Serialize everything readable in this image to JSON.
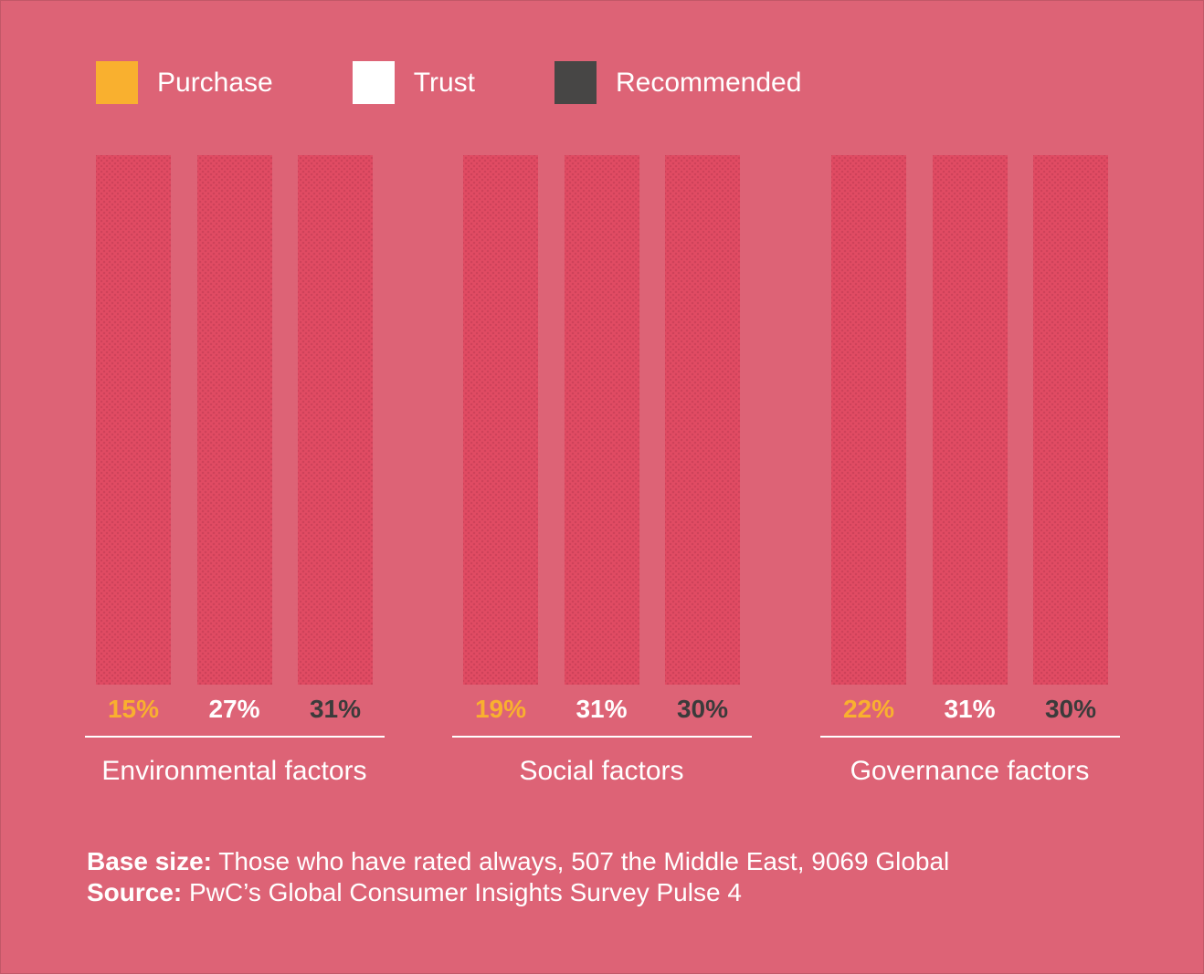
{
  "colors": {
    "background": "#dd6376",
    "bar_fill": "#e14b63",
    "purchase": "#f9b02f",
    "trust": "#ffffff",
    "recommended": "#474645",
    "text": "#ffffff",
    "dark_text": "#3b3b3b"
  },
  "chart_data": {
    "type": "bar",
    "title": "",
    "xlabel": "",
    "ylabel": "",
    "categories": [
      "Environmental factors",
      "Social factors",
      "Governance factors"
    ],
    "series": [
      {
        "name": "Purchase",
        "color": "#f9b02f",
        "values": [
          15,
          19,
          22
        ]
      },
      {
        "name": "Trust",
        "color": "#ffffff",
        "values": [
          27,
          31,
          31
        ]
      },
      {
        "name": "Recommended",
        "color": "#474645",
        "values": [
          31,
          30,
          30
        ]
      }
    ],
    "value_labels": [
      [
        "15%",
        "27%",
        "31%"
      ],
      [
        "19%",
        "31%",
        "30%"
      ],
      [
        "22%",
        "31%",
        "30%"
      ]
    ],
    "legend_position": "top-left",
    "grid": false,
    "layout_note": "All nine bars are drawn at identical full height; percentages appear only as colored labels beneath each bar"
  },
  "footer": {
    "base_size_label": "Base size:",
    "base_size_text": " Those who have rated always, 507 the Middle East, 9069 Global",
    "source_label": "Source:",
    "source_text": " PwC’s Global Consumer Insights Survey Pulse 4"
  }
}
